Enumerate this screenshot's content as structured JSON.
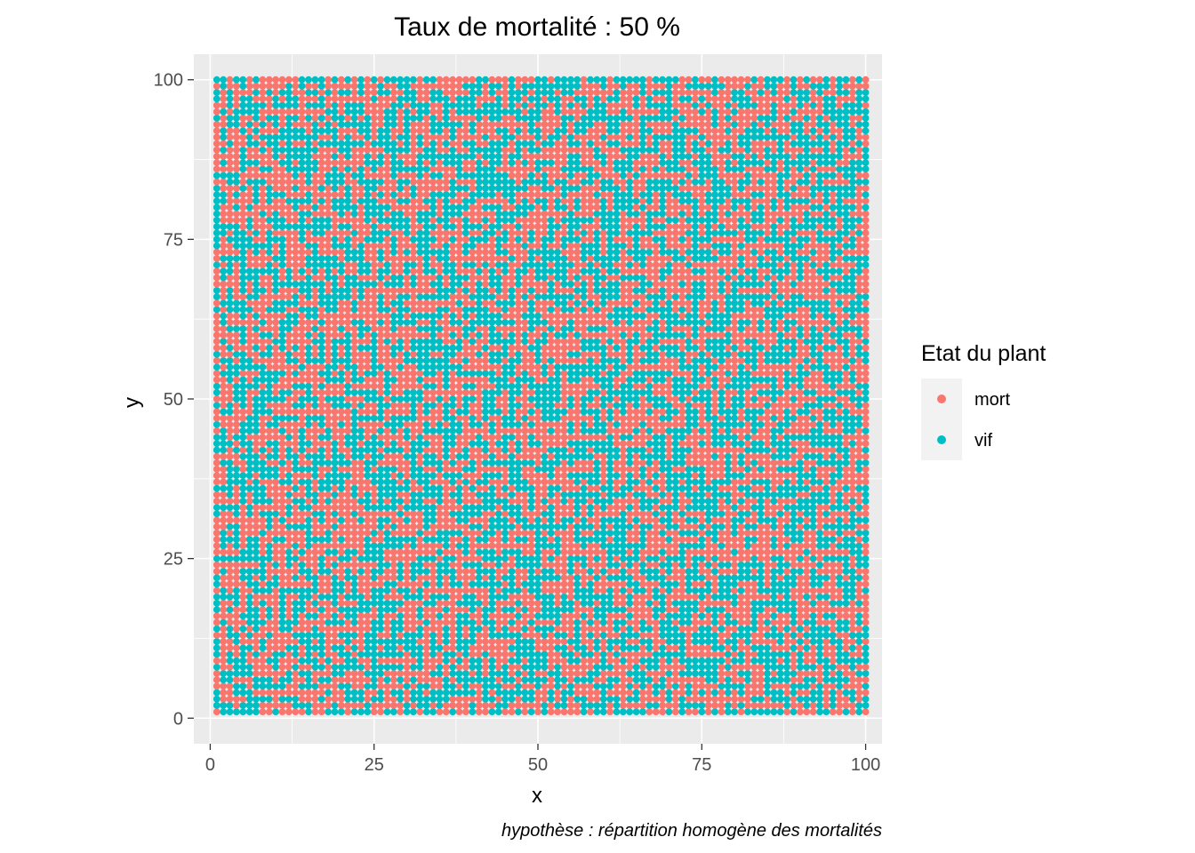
{
  "chart_data": {
    "type": "scatter",
    "title": "Taux de mortalité :  50 %",
    "xlabel": "x",
    "ylabel": "y",
    "caption": "hypothèse : répartition homogène des mortalités",
    "xlim": [
      -2.5,
      102.5
    ],
    "ylim": [
      -4,
      104
    ],
    "xticks": [
      0,
      25,
      50,
      75,
      100
    ],
    "yticks": [
      0,
      25,
      50,
      75,
      100
    ],
    "grid": true,
    "legend": {
      "title": "Etat du plant",
      "position": "right",
      "entries": [
        {
          "label": "mort",
          "color": "#F8766D"
        },
        {
          "label": "vif",
          "color": "#00BFC4"
        }
      ]
    },
    "grid_points": {
      "x_from": 1,
      "x_to": 100,
      "x_step": 1,
      "y_from": 1,
      "y_to": 100,
      "y_step": 1,
      "states": [
        "mort",
        "vif"
      ],
      "mortality_rate": 0.5,
      "distribution": "random homogeneous (about 50% mort, 50% vif)"
    }
  },
  "colors": {
    "panel_bg": "#EBEBEB",
    "grid_major": "#FFFFFF",
    "mort": "#F8766D",
    "vif": "#00BFC4"
  }
}
